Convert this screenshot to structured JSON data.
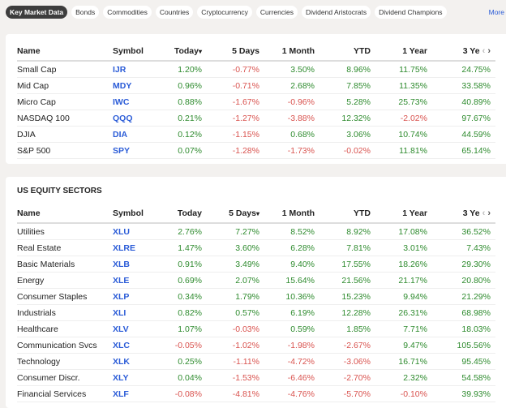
{
  "tabs": [
    "Key Market Data",
    "Bonds",
    "Commodities",
    "Countries",
    "Cryptocurrency",
    "Currencies",
    "Dividend Aristocrats",
    "Dividend Champions"
  ],
  "more_label": "More",
  "colors": {
    "positive": "#2e8b2e",
    "negative": "#d9534f",
    "symbol": "#2a5bd7"
  },
  "market": {
    "columns": [
      "Name",
      "Symbol",
      "Today",
      "5 Days",
      "1 Month",
      "YTD",
      "1 Year",
      "3 Ye"
    ],
    "sorted_column": "Today",
    "rows": [
      [
        "Small Cap",
        "IJR",
        "1.20%",
        "-0.77%",
        "3.50%",
        "8.96%",
        "11.75%",
        "24.75%"
      ],
      [
        "Mid Cap",
        "MDY",
        "0.96%",
        "-0.71%",
        "2.68%",
        "7.85%",
        "11.35%",
        "33.58%"
      ],
      [
        "Micro Cap",
        "IWC",
        "0.88%",
        "-1.67%",
        "-0.96%",
        "5.28%",
        "25.73%",
        "40.89%"
      ],
      [
        "NASDAQ 100",
        "QQQ",
        "0.21%",
        "-1.27%",
        "-3.88%",
        "12.32%",
        "-2.02%",
        "97.67%"
      ],
      [
        "DJIA",
        "DIA",
        "0.12%",
        "-1.15%",
        "0.68%",
        "3.06%",
        "10.74%",
        "44.59%"
      ],
      [
        "S&P 500",
        "SPY",
        "0.07%",
        "-1.28%",
        "-1.73%",
        "-0.02%",
        "11.81%",
        "65.14%"
      ]
    ]
  },
  "sectors": {
    "title": "US EQUITY SECTORS",
    "columns": [
      "Name",
      "Symbol",
      "Today",
      "5 Days",
      "1 Month",
      "YTD",
      "1 Year",
      "3 Ye"
    ],
    "sorted_column": "5 Days",
    "rows": [
      [
        "Utilities",
        "XLU",
        "2.76%",
        "7.27%",
        "8.52%",
        "8.92%",
        "17.08%",
        "36.52%"
      ],
      [
        "Real Estate",
        "XLRE",
        "1.47%",
        "3.60%",
        "6.28%",
        "7.81%",
        "3.01%",
        "7.43%"
      ],
      [
        "Basic Materials",
        "XLB",
        "0.91%",
        "3.49%",
        "9.40%",
        "17.55%",
        "18.26%",
        "29.30%"
      ],
      [
        "Energy",
        "XLE",
        "0.69%",
        "2.07%",
        "15.64%",
        "21.56%",
        "21.17%",
        "20.80%"
      ],
      [
        "Consumer Staples",
        "XLP",
        "0.34%",
        "1.79%",
        "10.36%",
        "15.23%",
        "9.94%",
        "21.29%"
      ],
      [
        "Industrials",
        "XLI",
        "0.82%",
        "0.57%",
        "6.19%",
        "12.28%",
        "26.31%",
        "68.98%"
      ],
      [
        "Healthcare",
        "XLV",
        "1.07%",
        "-0.03%",
        "0.59%",
        "1.85%",
        "7.71%",
        "18.03%"
      ],
      [
        "Communication Svcs",
        "XLC",
        "-0.05%",
        "-1.02%",
        "-1.98%",
        "-2.67%",
        "9.47%",
        "105.56%"
      ],
      [
        "Technology",
        "XLK",
        "0.25%",
        "-1.11%",
        "-4.72%",
        "-3.06%",
        "16.71%",
        "95.45%"
      ],
      [
        "Consumer Discr.",
        "XLY",
        "0.04%",
        "-1.53%",
        "-6.46%",
        "-2.70%",
        "2.32%",
        "54.58%"
      ],
      [
        "Financial Services",
        "XLF",
        "-0.08%",
        "-4.81%",
        "-4.76%",
        "-5.70%",
        "-0.10%",
        "39.93%"
      ]
    ]
  }
}
